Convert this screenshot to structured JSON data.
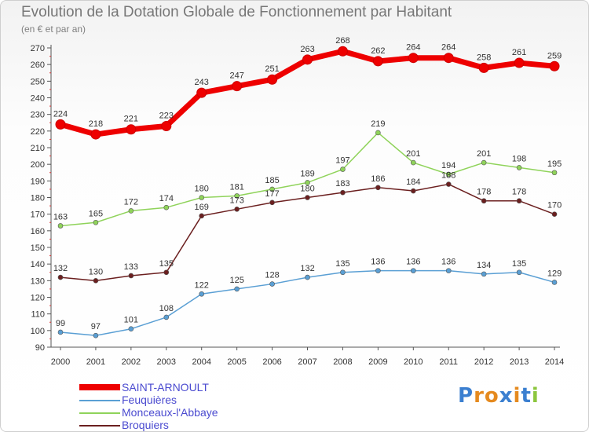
{
  "header": {
    "title": "Evolution de la Dotation Globale de Fonctionnement par Habitant",
    "subtitle": "(en € et par an)"
  },
  "chart_data": {
    "type": "line",
    "title": "Evolution de la Dotation Globale de Fonctionnement par Habitant",
    "subtitle": "(en € et par an)",
    "xlabel": "",
    "ylabel": "",
    "categories": [
      "2000",
      "2001",
      "2002",
      "2003",
      "2004",
      "2005",
      "2006",
      "2007",
      "2008",
      "2009",
      "2010",
      "2011",
      "2012",
      "2013",
      "2014"
    ],
    "ylim": [
      90,
      270
    ],
    "yticks": [
      90,
      100,
      110,
      120,
      130,
      140,
      150,
      160,
      170,
      180,
      190,
      200,
      210,
      220,
      230,
      240,
      250,
      260,
      270
    ],
    "grid": false,
    "legend_position": "bottom-left",
    "series": [
      {
        "name": "SAINT-ARNOULT",
        "color": "#ee0000",
        "values": [
          224,
          218,
          221,
          223,
          243,
          247,
          251,
          263,
          268,
          262,
          264,
          264,
          258,
          261,
          259
        ]
      },
      {
        "name": "Feuquières",
        "color": "#5a9fd4",
        "values": [
          99,
          97,
          101,
          108,
          122,
          125,
          128,
          132,
          135,
          136,
          136,
          136,
          134,
          135,
          129
        ]
      },
      {
        "name": "Monceaux-l'Abbaye",
        "color": "#8fd35a",
        "values": [
          163,
          165,
          172,
          174,
          180,
          181,
          185,
          189,
          197,
          219,
          201,
          194,
          201,
          198,
          195
        ]
      },
      {
        "name": "Broquiers",
        "color": "#6b1f1f",
        "values": [
          132,
          130,
          133,
          135,
          169,
          173,
          177,
          180,
          183,
          186,
          184,
          188,
          178,
          178,
          170
        ]
      }
    ]
  },
  "logo": {
    "letters": [
      "P",
      "r",
      "o",
      "x",
      "i",
      "t",
      "i"
    ],
    "colors": [
      "#3b7fd0",
      "#e58a1f",
      "#e58a1f",
      "#3b7fd0",
      "#e58a1f",
      "#3b7fd0",
      "#8cc63e"
    ]
  }
}
